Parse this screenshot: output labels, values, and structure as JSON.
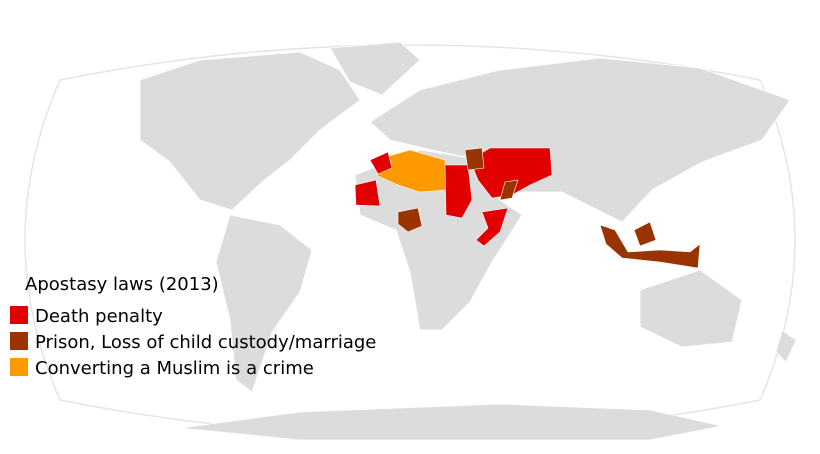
{
  "legend": {
    "title": "Apostasy laws (2013)",
    "items": [
      {
        "label": "Death penalty",
        "color": "#e00000"
      },
      {
        "label": "Prison, Loss of child custody/marriage",
        "color": "#993300"
      },
      {
        "label": "Converting a Muslim is a crime",
        "color": "#ff9900"
      }
    ]
  }
}
